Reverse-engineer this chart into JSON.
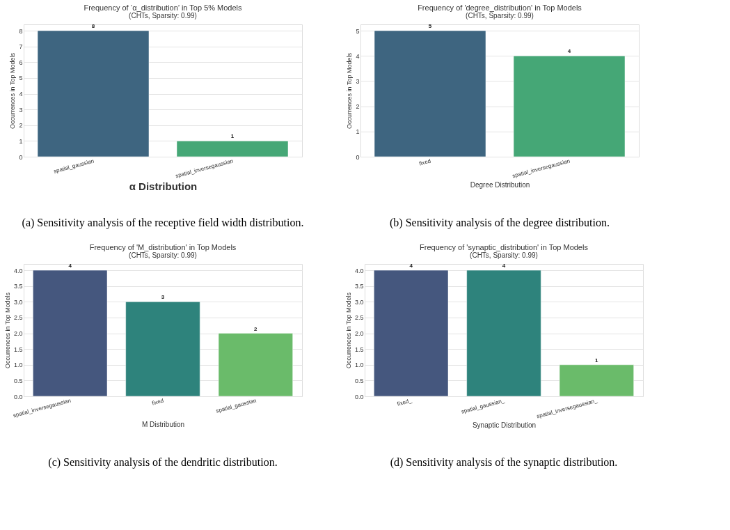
{
  "chart_data": [
    {
      "type": "bar",
      "title": "Frequency of ‘α_distribution’ in Top 5% Models",
      "subtitle": "(CHTs, Sparsity: 0.99)",
      "xlabel": "α Distribution",
      "ylabel": "Occurrences in Top Models",
      "categories": [
        "spatial_gaussian",
        "spatial_inversegaussian"
      ],
      "values": [
        8,
        1
      ],
      "colors": [
        "#3e6580",
        "#45a776"
      ],
      "ylim": [
        0,
        8.4
      ],
      "yticks": [
        0,
        1,
        2,
        3,
        4,
        5,
        6,
        7,
        8
      ],
      "grid": "y",
      "data_labels": true,
      "annotations": [
        "(a) Sensitivity analysis of the receptive field width distribution."
      ]
    },
    {
      "type": "bar",
      "title": "Frequency of 'degree_distribution' in Top Models",
      "subtitle": "(CHTs, Sparsity: 0.99)",
      "xlabel": "Degree Distribution",
      "ylabel": "Occurrences in Top Models",
      "categories": [
        "fixed",
        "spatial_inversegaussian"
      ],
      "values": [
        5,
        4
      ],
      "colors": [
        "#3e6580",
        "#45a776"
      ],
      "ylim": [
        0,
        5.25
      ],
      "yticks": [
        0,
        1,
        2,
        3,
        4,
        5
      ],
      "grid": "y",
      "data_labels": true,
      "annotations": [
        "(b) Sensitivity analysis of the degree distribution."
      ]
    },
    {
      "type": "bar",
      "title": "Frequency of 'M_distribution' in Top Models",
      "subtitle": "(CHTs, Sparsity: 0.99)",
      "xlabel": "M Distribution",
      "ylabel": "Occurrences in Top Models",
      "categories": [
        "spatial_inversegaussian",
        "fixed",
        "spatial_gaussian"
      ],
      "values": [
        4,
        3,
        2
      ],
      "colors": [
        "#45577e",
        "#2e837c",
        "#6abb6a"
      ],
      "ylim": [
        0,
        4.2
      ],
      "yticks": [
        {
          "value": 0,
          "label": "0.0"
        },
        {
          "value": 0.5,
          "label": "0.5"
        },
        {
          "value": 1,
          "label": "1.0"
        },
        {
          "value": 1.5,
          "label": "1.5"
        },
        {
          "value": 2,
          "label": "2.0"
        },
        {
          "value": 2.5,
          "label": "2.5"
        },
        {
          "value": 3,
          "label": "3.0"
        },
        {
          "value": 3.5,
          "label": "3.5"
        },
        {
          "value": 4,
          "label": "4.0"
        }
      ],
      "grid": "y",
      "data_labels": true,
      "annotations": [
        "(c) Sensitivity analysis of the dendritic distribution."
      ]
    },
    {
      "type": "bar",
      "title": "Frequency of 'synaptic_distribution' in Top Models",
      "subtitle": "(CHTs, Sparsity: 0.99)",
      "xlabel": "Synaptic Distribution",
      "ylabel": "Occurrences in Top Models",
      "categories": [
        "fixed_",
        "spatial_gaussian_",
        "spatial_inversegaussian_"
      ],
      "values": [
        4,
        4,
        1
      ],
      "colors": [
        "#45577e",
        "#2e837c",
        "#6abb6a"
      ],
      "ylim": [
        0,
        4.2
      ],
      "yticks": [
        {
          "value": 0,
          "label": "0.0"
        },
        {
          "value": 0.5,
          "label": "0.5"
        },
        {
          "value": 1,
          "label": "1.0"
        },
        {
          "value": 1.5,
          "label": "1.5"
        },
        {
          "value": 2,
          "label": "2.0"
        },
        {
          "value": 2.5,
          "label": "2.5"
        },
        {
          "value": 3,
          "label": "3.0"
        },
        {
          "value": 3.5,
          "label": "3.5"
        },
        {
          "value": 4,
          "label": "4.0"
        }
      ],
      "grid": "y",
      "data_labels": true,
      "annotations": [
        "(d) Sensitivity analysis of the synaptic distribution."
      ]
    }
  ]
}
